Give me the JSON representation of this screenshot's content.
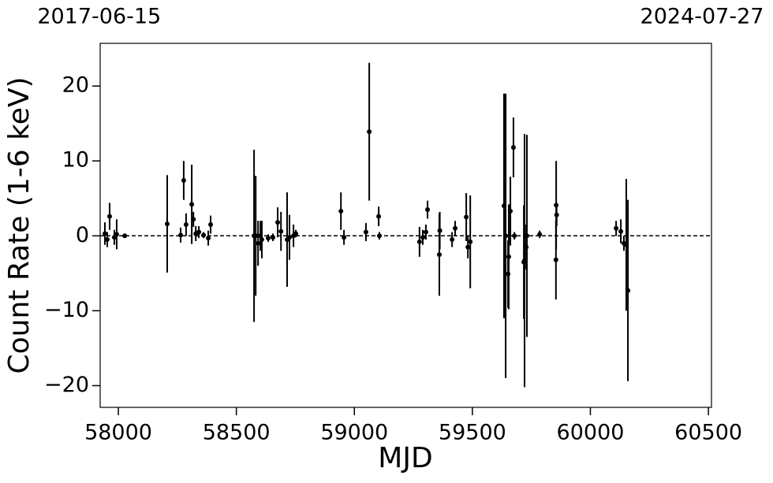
{
  "chart_data": {
    "type": "errorbar",
    "xlabel": "MJD",
    "ylabel": "Count Rate (1-6 keV)",
    "x2ticks": [
      {
        "value": 57919,
        "label": "2017-06-15"
      },
      {
        "value": 60518,
        "label": "2024-07-27"
      }
    ],
    "xlim": [
      57923,
      60513
    ],
    "ylim": [
      -22.9,
      25.7
    ],
    "xticks": [
      58000,
      58500,
      59000,
      59500,
      60000,
      60500
    ],
    "yticks": [
      {
        "value": -20,
        "label": "−20"
      },
      {
        "value": -10,
        "label": "−10"
      },
      0,
      10,
      20
    ],
    "hline": 0,
    "series": [
      {
        "color": "#000000",
        "x": [
          57943,
          57953,
          57963,
          57983,
          57993,
          58027,
          58207,
          58264,
          58277,
          58287,
          58311,
          58318,
          58328,
          58341,
          58361,
          58381,
          58391,
          58575,
          58582,
          58592,
          58602,
          58608,
          58635,
          58655,
          58675,
          58689,
          58715,
          58725,
          58742,
          58752,
          58943,
          58956,
          59049,
          59063,
          59103,
          59106,
          59276,
          59290,
          59303,
          59310,
          59360,
          59362,
          59414,
          59427,
          59474,
          59481,
          59491,
          59634,
          59641,
          59651,
          59654,
          59661,
          59674,
          59678,
          59718,
          59721,
          59731,
          59728,
          59785,
          59855,
          59857,
          59854,
          60109,
          60129,
          60142,
          60152,
          60159
        ],
        "values": [
          0.3,
          -0.5,
          2.6,
          -0.2,
          0.2,
          0,
          1.6,
          0.1,
          7.4,
          1.5,
          4.2,
          2.2,
          0.3,
          0.5,
          0.1,
          -0.3,
          1.5,
          0,
          0,
          -1,
          0,
          -0.5,
          -0.3,
          -0.2,
          1.8,
          0.6,
          -0.5,
          -0.2,
          0,
          0.3,
          3.3,
          -0.2,
          0.5,
          13.9,
          2.6,
          0,
          -0.8,
          -0.2,
          0.5,
          3.5,
          -2.5,
          0.7,
          -0.5,
          1.0,
          2.5,
          -1.5,
          -0.8,
          4.0,
          0,
          -5.1,
          -2.8,
          3.3,
          11.8,
          0,
          -3.5,
          -3.3,
          0,
          -1.5,
          0.2,
          4.1,
          2.8,
          -3.2,
          1.0,
          0.6,
          -1.0,
          -1.2,
          -7.3
        ],
        "errors": [
          1.5,
          1,
          1.8,
          1,
          2,
          0.3,
          6.5,
          1,
          2.6,
          1.5,
          5.3,
          1,
          1,
          0.8,
          0.4,
          1,
          1.2,
          11.5,
          8,
          3,
          2,
          2.5,
          0.5,
          0.5,
          2,
          2.6,
          6.3,
          3,
          1.5,
          0.5,
          2.5,
          1,
          1.2,
          9.2,
          1.3,
          0.5,
          2,
          1,
          1,
          1.2,
          5.5,
          2.5,
          1,
          1,
          3.2,
          1.5,
          6.2,
          15,
          19,
          4.5,
          7,
          4.6,
          4,
          0.5,
          7.6,
          16.9,
          13.5,
          3,
          0.5,
          5.9,
          1.5,
          5.3,
          1,
          1.6,
          1,
          8.8,
          12.1
        ]
      }
    ]
  }
}
